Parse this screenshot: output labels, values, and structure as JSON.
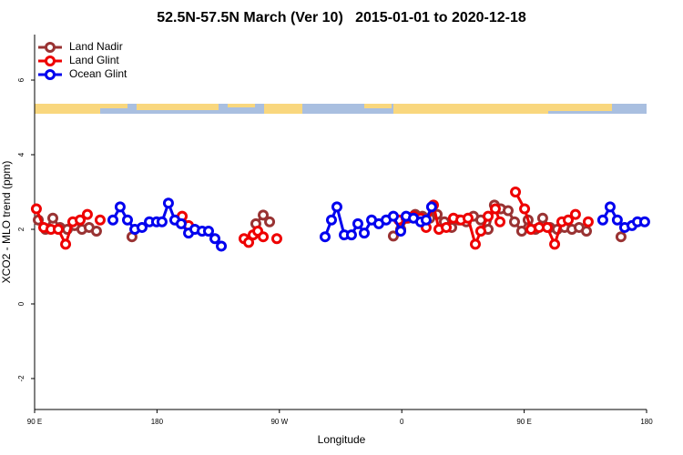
{
  "chart_data": {
    "type": "line",
    "title": "52.5N-57.5N March (Ver 10)   2015-01-01 to 2020-12-18",
    "x_label": "Longitude",
    "y_label": "XCO2 - MLO trend (ppm)",
    "xlim": [
      90,
      540
    ],
    "ylim": [
      -2.83,
      7.22
    ],
    "xticks": [
      {
        "value": 90,
        "label": "90 E"
      },
      180,
      {
        "value": 270,
        "label": "90 W"
      },
      {
        "value": 360,
        "label": "0"
      },
      {
        "value": 450,
        "label": "90 E"
      },
      {
        "value": 540,
        "label": "180"
      }
    ],
    "yticks": [
      -2,
      0,
      2,
      4,
      6
    ],
    "legend": "top-left",
    "series": [
      {
        "name": "Land Nadir",
        "color": "#993333",
        "x": [
          92.7,
          98,
          103.4,
          108.7,
          114.1,
          119.4,
          124.8,
          130.1,
          135.5,
          null,
          161.6,
          null,
          252.7,
          258.1,
          262.8,
          null,
          353.8,
          359.2,
          364.5,
          369.9,
          375.2,
          380.6,
          386.0,
          391.3,
          396.7,
          402.0,
          407.4,
          412.7,
          418.1,
          423.5,
          428.1,
          432.8,
          438.2,
          442.9,
          448.2,
          452.9,
          458.3,
          463.6,
          469.0,
          474.3,
          479.7,
          485.1,
          490.4,
          495.8,
          null,
          521.2
        ],
        "values": [
          2.25,
          2.0,
          2.3,
          2.05,
          2.0,
          2.1,
          2.0,
          2.05,
          1.95,
          null,
          1.8,
          null,
          2.15,
          2.38,
          2.2,
          null,
          1.82,
          2.0,
          2.3,
          2.4,
          2.35,
          2.3,
          2.4,
          2.2,
          2.05,
          2.25,
          2.2,
          2.35,
          2.25,
          2.0,
          2.65,
          2.55,
          2.5,
          2.2,
          1.95,
          2.25,
          2.0,
          2.3,
          2.05,
          2.0,
          2.05,
          2.0,
          2.05,
          1.95,
          null,
          1.8
        ]
      },
      {
        "name": "Land Glint",
        "color": "#ee0000",
        "x": [
          91.3,
          96.7,
          102.0,
          107.4,
          112.8,
          118.1,
          123.5,
          128.8,
          null,
          138.2,
          null,
          198.5,
          203.2,
          null,
          244.0,
          247.4,
          250.7,
          254.1,
          258.1,
          null,
          268.1,
          null,
          357.8,
          363.2,
          368.6,
          373.9,
          377.9,
          383.3,
          387.3,
          392.7,
          398.0,
          403.4,
          408.7,
          414.1,
          418.1,
          423.5,
          428.8,
          432.2,
          null,
          443.6,
          450.3,
          455.0,
          461.0,
          467.0,
          472.4,
          477.7,
          482.4,
          487.7,
          null,
          497.1
        ],
        "values": [
          2.55,
          2.05,
          2.0,
          2.0,
          1.6,
          2.2,
          2.25,
          2.4,
          null,
          2.25,
          null,
          2.35,
          2.1,
          null,
          1.75,
          1.65,
          1.85,
          1.95,
          1.8,
          null,
          1.75,
          null,
          2.25,
          2.3,
          2.35,
          2.3,
          2.05,
          2.65,
          2.0,
          2.05,
          2.3,
          2.25,
          2.3,
          1.6,
          1.95,
          2.35,
          2.55,
          2.2,
          null,
          3.0,
          2.55,
          2.0,
          2.05,
          2.05,
          1.6,
          2.2,
          2.25,
          2.4,
          null,
          2.2
        ]
      },
      {
        "name": "Ocean Glint",
        "color": "#0000ee",
        "x": [
          147.6,
          152.9,
          158.3,
          163.7,
          169.0,
          174.4,
          179.7,
          183.7,
          188.4,
          193.1,
          197.8,
          203.2,
          207.8,
          213.2,
          217.9,
          222.6,
          227.3,
          null,
          303.6,
          308.3,
          312.3,
          317.7,
          323.0,
          327.7,
          332.4,
          337.8,
          343.1,
          348.5,
          353.8,
          359.2,
          363.2,
          368.6,
          373.9,
          377.9,
          381.9,
          null,
          507.8,
          513.2,
          518.5,
          523.9,
          529.3,
          533.3,
          538.6
        ],
        "values": [
          2.25,
          2.6,
          2.25,
          2.0,
          2.05,
          2.2,
          2.2,
          2.2,
          2.7,
          2.25,
          2.15,
          1.9,
          2.0,
          1.95,
          1.95,
          1.75,
          1.55,
          null,
          1.8,
          2.25,
          2.6,
          1.85,
          1.85,
          2.15,
          1.9,
          2.25,
          2.15,
          2.25,
          2.35,
          1.95,
          2.35,
          2.3,
          2.2,
          2.25,
          2.6,
          null,
          2.25,
          2.6,
          2.25,
          2.05,
          2.1,
          2.2,
          2.2
        ]
      }
    ]
  }
}
